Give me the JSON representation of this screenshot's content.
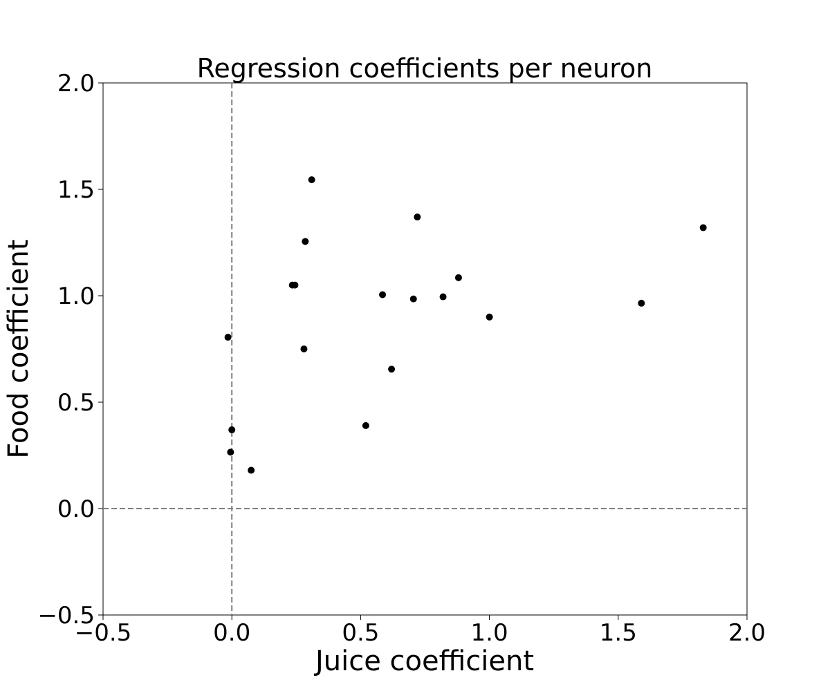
{
  "chart_data": {
    "type": "scatter",
    "title": "Regression coefficients per neuron",
    "xlabel": "Juice coefficient",
    "ylabel": "Food coefficient",
    "xlim": [
      -0.5,
      2.0
    ],
    "ylim": [
      -0.5,
      2.0
    ],
    "xticks": [
      -0.5,
      0.0,
      0.5,
      1.0,
      1.5,
      2.0
    ],
    "yticks": [
      -0.5,
      0.0,
      0.5,
      1.0,
      1.5,
      2.0
    ],
    "xtick_labels": [
      "−0.5",
      "0.0",
      "0.5",
      "1.0",
      "1.5",
      "2.0"
    ],
    "ytick_labels": [
      "−0.5",
      "0.0",
      "0.5",
      "1.0",
      "1.5",
      "2.0"
    ],
    "grid": false,
    "reference_lines": {
      "x": 0.0,
      "y": 0.0,
      "style": "dashed",
      "color": "#808080"
    },
    "marker_color": "#000000",
    "x": [
      0.31,
      0.72,
      1.83,
      0.285,
      0.235,
      0.245,
      0.88,
      0.585,
      0.705,
      0.82,
      1.59,
      1.0,
      -0.015,
      0.28,
      0.62,
      0.52,
      0.0,
      -0.005,
      0.075
    ],
    "y": [
      1.545,
      1.37,
      1.32,
      1.255,
      1.05,
      1.05,
      1.085,
      1.005,
      0.985,
      0.995,
      0.965,
      0.9,
      0.805,
      0.75,
      0.655,
      0.39,
      0.37,
      0.265,
      0.18
    ]
  }
}
